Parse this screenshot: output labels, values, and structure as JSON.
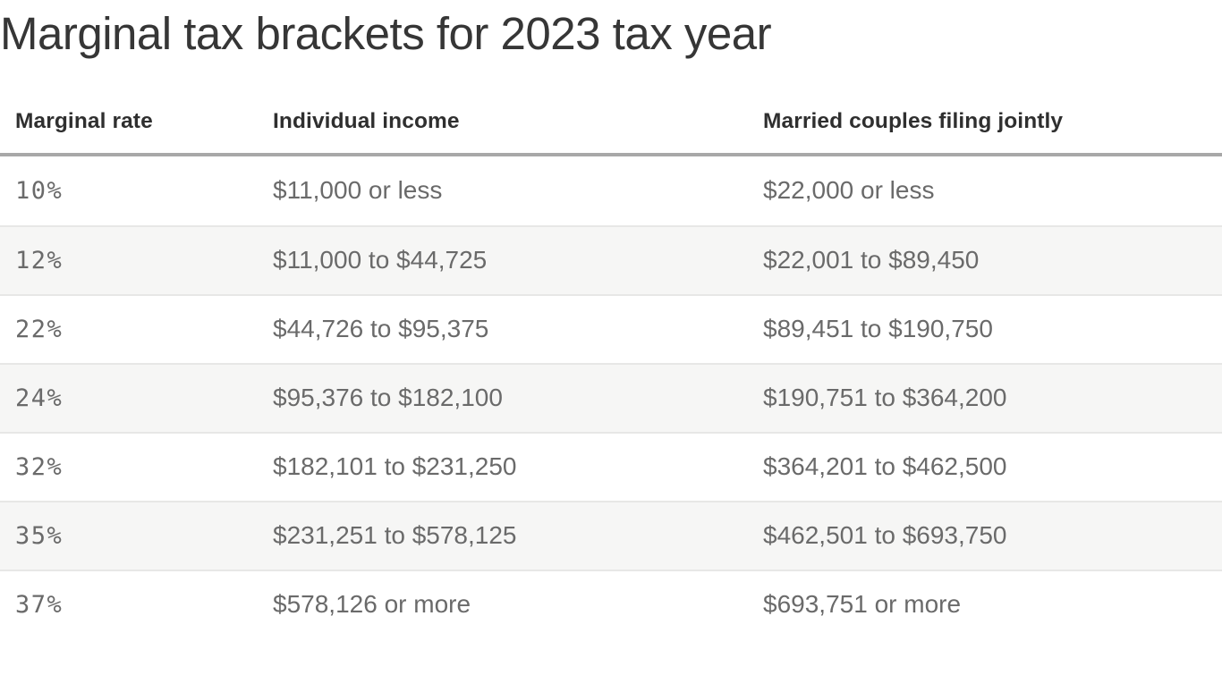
{
  "chart_data": {
    "type": "table",
    "title": "Marginal tax brackets for 2023 tax year",
    "columns": [
      "Marginal rate",
      "Individual income",
      "Married couples filing jointly"
    ],
    "rows": [
      [
        "10%",
        "$11,000 or less",
        "$22,000 or less"
      ],
      [
        "12%",
        "$11,000 to $44,725",
        "$22,001 to $89,450"
      ],
      [
        "22%",
        "$44,726 to $95,375",
        "$89,451 to $190,750"
      ],
      [
        "24%",
        "$95,376 to $182,100",
        "$190,751 to $364,200"
      ],
      [
        "32%",
        "$182,101 to $231,250",
        "$364,201 to $462,500"
      ],
      [
        "35%",
        "$231,251 to $578,125",
        "$462,501 to $693,750"
      ],
      [
        "37%",
        "$578,126 or more",
        "$693,751 or more"
      ]
    ],
    "layout": {
      "striped_rows": true,
      "stripe_pattern": "even rows shaded",
      "header_rule": true
    }
  },
  "colors": {
    "title_text": "#363636",
    "heading_text": "#2f2f2f",
    "body_text": "#6a6a6a",
    "header_rule": "#a8a8a8",
    "row_stripe": "#f6f6f5",
    "row_divider": "#e7e7e6",
    "background": "#ffffff"
  }
}
